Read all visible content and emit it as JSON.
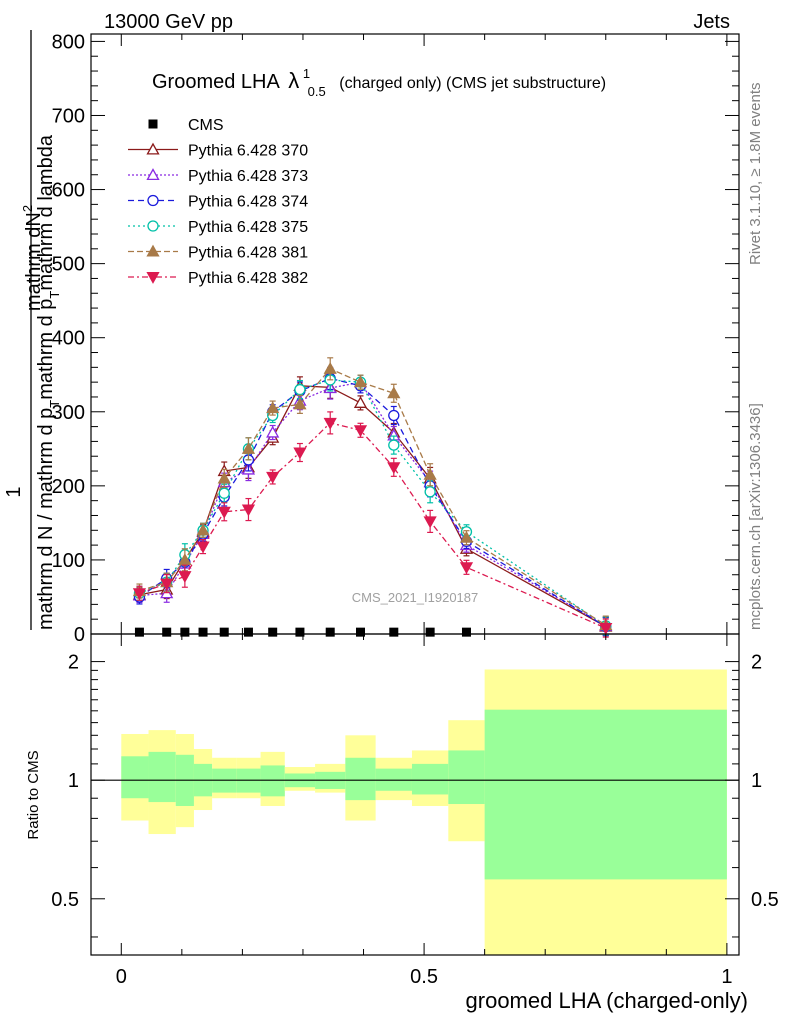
{
  "header": {
    "left": "13000 GeV pp",
    "right": "Jets"
  },
  "side_labels": {
    "rivet": "Rivet 3.1.10, ≥ 1.8M events",
    "mcplots": "mcplots.cern.ch [arXiv:1306.3436]"
  },
  "chart_data": [
    {
      "type": "line",
      "title_main": "Groomed LHA",
      "title_lambda": "λ",
      "title_sup": "1",
      "title_sub": "0.5",
      "title_rest": "(charged only) (CMS jet substructure)",
      "watermark": "CMS_2021_I1920187",
      "ylabel": {
        "one": "1",
        "num": "mathrm dN",
        "num_sup": "2",
        "den_a": "mathrm d N / mathrm d p",
        "den_a_sub": "T",
        "den_b": "mathrm d p",
        "den_b_sub": "T",
        "den_c": "mathrm d lambda"
      },
      "xlim": [
        -0.05,
        1.02
      ],
      "ylim": [
        0,
        810
      ],
      "yticks": [
        {
          "v": 0,
          "label": "0"
        },
        {
          "v": 100,
          "label": "100"
        },
        {
          "v": 200,
          "label": "200"
        },
        {
          "v": 300,
          "label": "300"
        },
        {
          "v": 400,
          "label": "400"
        },
        {
          "v": 500,
          "label": "500"
        },
        {
          "v": 600,
          "label": "600"
        },
        {
          "v": 700,
          "label": "700"
        },
        {
          "v": 800,
          "label": "800"
        }
      ],
      "x": [
        0.03,
        0.075,
        0.105,
        0.135,
        0.17,
        0.21,
        0.25,
        0.295,
        0.345,
        0.395,
        0.45,
        0.51,
        0.57,
        0.8
      ],
      "data": {
        "name": "CMS",
        "values": [
          2.5,
          2.5,
          2.5,
          2.5,
          2.5,
          2.5,
          2.5,
          2.5,
          2.5,
          2.5,
          2.5,
          2.5,
          2.5,
          null
        ]
      },
      "series": [
        {
          "name": "Pythia 6.428 370",
          "color": "#8b1a1a",
          "dash": "",
          "marker": "tri-open",
          "values": [
            53,
            60,
            100,
            138,
            220,
            225,
            265,
            335,
            333,
            312,
            272,
            210,
            115,
            10
          ]
        },
        {
          "name": "Pythia 6.428 373",
          "color": "#8a2be2",
          "dash": "2,2",
          "marker": "tri-open",
          "values": [
            52,
            55,
            95,
            135,
            205,
            222,
            272,
            315,
            332,
            340,
            268,
            205,
            120,
            11
          ]
        },
        {
          "name": "Pythia 6.428 374",
          "color": "#1a1adc",
          "dash": "6,4",
          "marker": "circle-open",
          "values": [
            50,
            75,
            97,
            135,
            185,
            235,
            300,
            328,
            345,
            335,
            295,
            200,
            125,
            10
          ]
        },
        {
          "name": "Pythia 6.428 375",
          "color": "#00c0a8",
          "dash": "2,3",
          "marker": "circle-open",
          "values": [
            55,
            70,
            107,
            140,
            190,
            250,
            295,
            330,
            343,
            340,
            255,
            192,
            138,
            11
          ]
        },
        {
          "name": "Pythia 6.428 381",
          "color": "#a87a48",
          "dash": "6,3",
          "marker": "tri-filled",
          "values": [
            58,
            70,
            100,
            140,
            210,
            250,
            305,
            310,
            358,
            340,
            325,
            215,
            130,
            12
          ]
        },
        {
          "name": "Pythia 6.428 382",
          "color": "#dc1a50",
          "dash": "6,3,2,3",
          "marker": "tri-down",
          "values": [
            55,
            68,
            78,
            118,
            165,
            168,
            212,
            245,
            285,
            275,
            225,
            152,
            90,
            8
          ]
        }
      ]
    },
    {
      "type": "area",
      "ylabel": "Ratio to CMS",
      "xlabel": "groomed LHA (charged-only)",
      "ylog": true,
      "ylim": [
        0.36,
        2.35
      ],
      "xlim": [
        -0.05,
        1.02
      ],
      "xticks": [
        {
          "v": 0,
          "label": "0"
        },
        {
          "v": 0.5,
          "label": "0.5"
        },
        {
          "v": 1,
          "label": "1"
        }
      ],
      "yticks": [
        {
          "v": 0.5,
          "label": "0.5"
        },
        {
          "v": 1,
          "label": "1"
        },
        {
          "v": 2,
          "label": "2"
        }
      ],
      "bins": [
        {
          "x0": 0.0,
          "x1": 0.045,
          "g_lo": 0.9,
          "g_hi": 1.15,
          "y_lo": 0.79,
          "y_hi": 1.31
        },
        {
          "x0": 0.045,
          "x1": 0.09,
          "g_lo": 0.88,
          "g_hi": 1.18,
          "y_lo": 0.73,
          "y_hi": 1.34
        },
        {
          "x0": 0.09,
          "x1": 0.12,
          "g_lo": 0.86,
          "g_hi": 1.16,
          "y_lo": 0.76,
          "y_hi": 1.31
        },
        {
          "x0": 0.12,
          "x1": 0.15,
          "g_lo": 0.91,
          "g_hi": 1.1,
          "y_lo": 0.84,
          "y_hi": 1.2
        },
        {
          "x0": 0.15,
          "x1": 0.19,
          "g_lo": 0.93,
          "g_hi": 1.07,
          "y_lo": 0.9,
          "y_hi": 1.14
        },
        {
          "x0": 0.19,
          "x1": 0.23,
          "g_lo": 0.93,
          "g_hi": 1.07,
          "y_lo": 0.9,
          "y_hi": 1.14
        },
        {
          "x0": 0.23,
          "x1": 0.27,
          "g_lo": 0.91,
          "g_hi": 1.09,
          "y_lo": 0.86,
          "y_hi": 1.18
        },
        {
          "x0": 0.27,
          "x1": 0.32,
          "g_lo": 0.96,
          "g_hi": 1.04,
          "y_lo": 0.94,
          "y_hi": 1.08
        },
        {
          "x0": 0.32,
          "x1": 0.37,
          "g_lo": 0.95,
          "g_hi": 1.05,
          "y_lo": 0.93,
          "y_hi": 1.1
        },
        {
          "x0": 0.37,
          "x1": 0.42,
          "g_lo": 0.89,
          "g_hi": 1.14,
          "y_lo": 0.79,
          "y_hi": 1.3
        },
        {
          "x0": 0.42,
          "x1": 0.48,
          "g_lo": 0.94,
          "g_hi": 1.07,
          "y_lo": 0.89,
          "y_hi": 1.14
        },
        {
          "x0": 0.48,
          "x1": 0.54,
          "g_lo": 0.92,
          "g_hi": 1.1,
          "y_lo": 0.86,
          "y_hi": 1.19
        },
        {
          "x0": 0.54,
          "x1": 0.6,
          "g_lo": 0.87,
          "g_hi": 1.19,
          "y_lo": 0.7,
          "y_hi": 1.42
        },
        {
          "x0": 0.6,
          "x1": 1.0,
          "g_lo": 0.56,
          "g_hi": 1.51,
          "y_lo": 0.36,
          "y_hi": 1.91
        }
      ]
    }
  ]
}
